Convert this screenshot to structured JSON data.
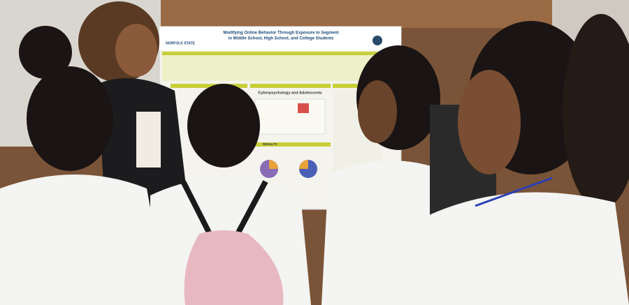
{
  "poster": {
    "logo_text": "NORFOLK STATE",
    "title": "Modifying Online Behavior Through Exposure to Segment",
    "subtitle": "in Middle School, High School, and College Students",
    "section_heading": "Cyberpsychology and Adolescents",
    "results_heading": "RESULTS"
  }
}
